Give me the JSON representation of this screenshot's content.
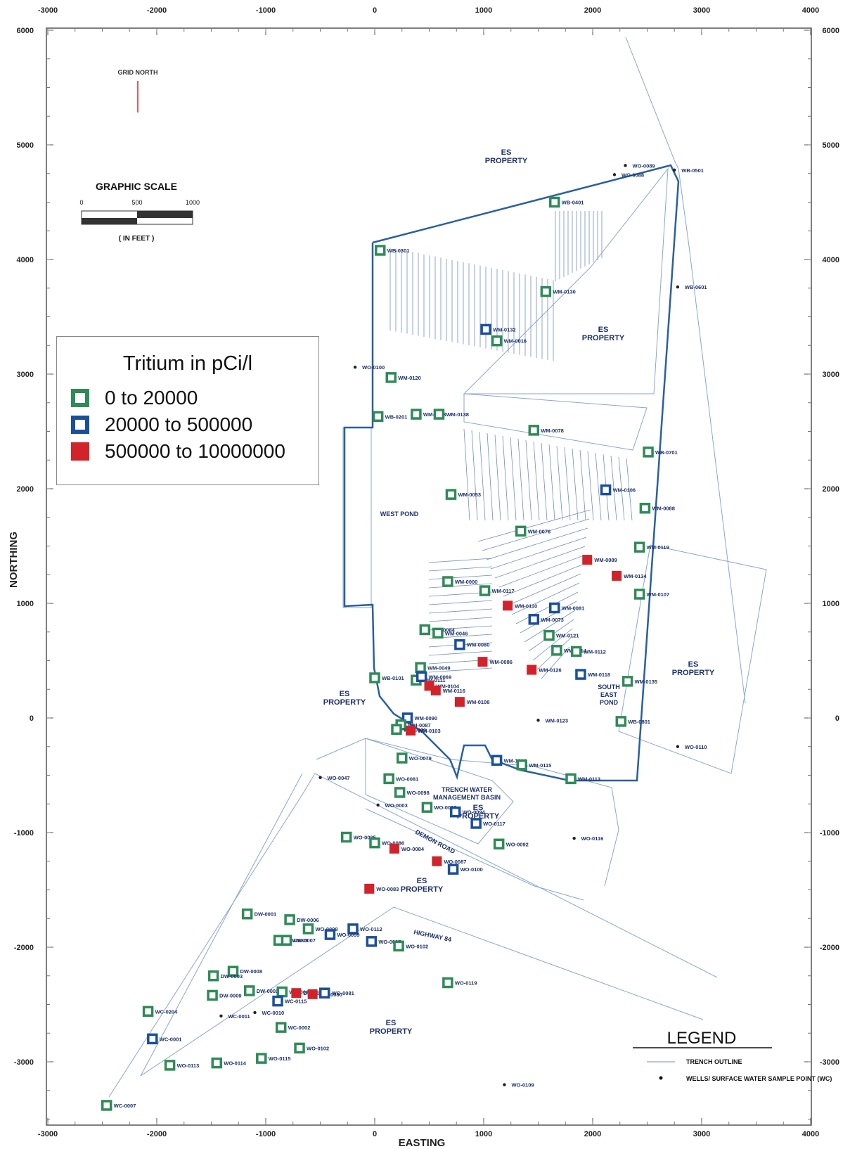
{
  "axes": {
    "x_title": "EASTING",
    "y_title": "NORTHING",
    "x_top_ticks": [
      "-3000",
      "-2000",
      "-1000",
      "0",
      "1000",
      "2000",
      "3000",
      "4000"
    ],
    "x_bottom_ticks": [
      "-3000",
      "-2000",
      "-1000",
      "0",
      "1000",
      "2000",
      "3000",
      "4000"
    ],
    "y_left_ticks": [
      "6000",
      "5000",
      "4000",
      "3000",
      "2000",
      "1000",
      "0",
      "-1000",
      "-2000",
      "-3000"
    ],
    "y_right_ticks": [
      "6000",
      "5000",
      "4000",
      "3000",
      "2000",
      "1000",
      "0",
      "-1000",
      "-2000",
      "-3000"
    ]
  },
  "north_arrow": {
    "label": "GRID NORTH"
  },
  "scale_bar": {
    "title": "GRAPHIC SCALE",
    "ticks": [
      "0",
      "500",
      "1000"
    ],
    "unit": "( IN FEET )"
  },
  "legend_tritium": {
    "title": "Tritium in pCi/l",
    "items": [
      {
        "label": "0  to  20000",
        "color": "#2e8b57",
        "style": "hollow"
      },
      {
        "label": "20000  to  500000",
        "color": "#1a4f9c",
        "style": "hollow"
      },
      {
        "label": "500000  to  10000000",
        "color": "#d2232a",
        "style": "filled"
      }
    ]
  },
  "legend_map": {
    "title": "LEGEND",
    "items": [
      {
        "label": "TRENCH OUTLINE"
      },
      {
        "label": "WELLS/ SURFACE WATER SAMPLE POINT (WC)"
      }
    ]
  },
  "area_labels": [
    "ES PROPERTY",
    "ES PROPERTY",
    "ES PROPERTY",
    "ES PROPERTY",
    "ES PROPERTY",
    "ES PROPERTY",
    "WEST POND",
    "SOUTH EAST POND",
    "TRENCH WATER MANAGEMENT BASIN",
    "DEMON ROAD",
    "HIGHWAY 84"
  ],
  "colors": {
    "low": "#2e8b57",
    "mid": "#1a4f9c",
    "high": "#d2232a",
    "boundary": "#2a5fa0",
    "trench": "#6f8fc0"
  },
  "samples": [
    {
      "id": "WB-0401",
      "e": 1650,
      "n": 4500,
      "level": "low"
    },
    {
      "id": "WO-0089",
      "e": 2300,
      "n": 4820,
      "level": "none"
    },
    {
      "id": "WO-0088",
      "e": 2200,
      "n": 4740,
      "level": "none"
    },
    {
      "id": "WB-0501",
      "e": 2750,
      "n": 4780,
      "level": "none"
    },
    {
      "id": "WB-0301",
      "e": 50,
      "n": 4080,
      "level": "low"
    },
    {
      "id": "WB-0601",
      "e": 2780,
      "n": 3760,
      "level": "none"
    },
    {
      "id": "WM-0130",
      "e": 1570,
      "n": 3720,
      "level": "low"
    },
    {
      "id": "WM-0132",
      "e": 1020,
      "n": 3390,
      "level": "mid"
    },
    {
      "id": "WM-0016",
      "e": 1120,
      "n": 3290,
      "level": "low"
    },
    {
      "id": "WO-0100",
      "e": -180,
      "n": 3060,
      "level": "none"
    },
    {
      "id": "WM-0120",
      "e": 150,
      "n": 2970,
      "level": "low"
    },
    {
      "id": "WB-0201",
      "e": 30,
      "n": 2630,
      "level": "low"
    },
    {
      "id": "WM-0133",
      "e": 380,
      "n": 2650,
      "level": "low"
    },
    {
      "id": "WM-0138",
      "e": 590,
      "n": 2650,
      "level": "low"
    },
    {
      "id": "WM-0078",
      "e": 1460,
      "n": 2510,
      "level": "low"
    },
    {
      "id": "WB-0701",
      "e": 2510,
      "n": 2320,
      "level": "low"
    },
    {
      "id": "WM-0053",
      "e": 700,
      "n": 1950,
      "level": "low"
    },
    {
      "id": "WM-0106",
      "e": 2120,
      "n": 1990,
      "level": "mid"
    },
    {
      "id": "WM-0088",
      "e": 2480,
      "n": 1830,
      "level": "low"
    },
    {
      "id": "WM-0076",
      "e": 1340,
      "n": 1630,
      "level": "low"
    },
    {
      "id": "WM-0119",
      "e": 2430,
      "n": 1490,
      "level": "low"
    },
    {
      "id": "WM-0089",
      "e": 1950,
      "n": 1380,
      "level": "high"
    },
    {
      "id": "WM-0134",
      "e": 2220,
      "n": 1240,
      "level": "high"
    },
    {
      "id": "WM-0000",
      "e": 670,
      "n": 1190,
      "level": "low"
    },
    {
      "id": "WM-0117",
      "e": 1010,
      "n": 1110,
      "level": "low"
    },
    {
      "id": "WM-0107",
      "e": 2430,
      "n": 1080,
      "level": "low"
    },
    {
      "id": "WM-0110",
      "e": 1220,
      "n": 980,
      "level": "high"
    },
    {
      "id": "WM-0081",
      "e": 1650,
      "n": 960,
      "level": "mid"
    },
    {
      "id": "WM-0073",
      "e": 1460,
      "n": 860,
      "level": "mid"
    },
    {
      "id": "WM-0084",
      "e": 460,
      "n": 770,
      "level": "low"
    },
    {
      "id": "WM-0046",
      "e": 580,
      "n": 740,
      "level": "low"
    },
    {
      "id": "WM-0121",
      "e": 1600,
      "n": 720,
      "level": "low"
    },
    {
      "id": "WM-0080",
      "e": 780,
      "n": 640,
      "level": "mid"
    },
    {
      "id": "WM-0114",
      "e": 1670,
      "n": 590,
      "level": "low"
    },
    {
      "id": "WM-0112",
      "e": 1850,
      "n": 580,
      "level": "low"
    },
    {
      "id": "WM-0086",
      "e": 990,
      "n": 490,
      "level": "high"
    },
    {
      "id": "WM-0049",
      "e": 420,
      "n": 440,
      "level": "low"
    },
    {
      "id": "WM-0126",
      "e": 1440,
      "n": 420,
      "level": "high"
    },
    {
      "id": "WM-0118",
      "e": 1890,
      "n": 380,
      "level": "mid"
    },
    {
      "id": "WM-0111",
      "e": 380,
      "n": 330,
      "level": "low"
    },
    {
      "id": "WM-0069",
      "e": 430,
      "n": 360,
      "level": "mid"
    },
    {
      "id": "WB-0101",
      "e": 0,
      "n": 350,
      "level": "low"
    },
    {
      "id": "WM-0135",
      "e": 2320,
      "n": 320,
      "level": "low"
    },
    {
      "id": "WM-0104",
      "e": 500,
      "n": 280,
      "level": "high"
    },
    {
      "id": "WM-0116",
      "e": 560,
      "n": 240,
      "level": "high"
    },
    {
      "id": "WM-0108",
      "e": 780,
      "n": 140,
      "level": "high"
    },
    {
      "id": "WM-0123",
      "e": 1500,
      "n": -20,
      "level": "none"
    },
    {
      "id": "WB-0801",
      "e": 2260,
      "n": -30,
      "level": "low"
    },
    {
      "id": "WM-0090",
      "e": 300,
      "n": 0,
      "level": "mid"
    },
    {
      "id": "WM-0087",
      "e": 240,
      "n": -60,
      "level": "low"
    },
    {
      "id": "WM-0101",
      "e": 200,
      "n": -100,
      "level": "low"
    },
    {
      "id": "WM-0103",
      "e": 330,
      "n": -110,
      "level": "high"
    },
    {
      "id": "WO-0110",
      "e": 2780,
      "n": -250,
      "level": "none"
    },
    {
      "id": "WO-0079",
      "e": 250,
      "n": -350,
      "level": "low"
    },
    {
      "id": "WM-1001",
      "e": 1120,
      "n": -370,
      "level": "mid"
    },
    {
      "id": "WM-0115",
      "e": 1350,
      "n": -410,
      "level": "low"
    },
    {
      "id": "WO-0047",
      "e": -500,
      "n": -520,
      "level": "none"
    },
    {
      "id": "WO-0081",
      "e": 130,
      "n": -530,
      "level": "low"
    },
    {
      "id": "WM-0113",
      "e": 1800,
      "n": -530,
      "level": "low"
    },
    {
      "id": "WO-0098",
      "e": 230,
      "n": -650,
      "level": "low"
    },
    {
      "id": "WO-0003",
      "e": 30,
      "n": -760,
      "level": "none"
    },
    {
      "id": "WO-0093",
      "e": 480,
      "n": -780,
      "level": "low"
    },
    {
      "id": "WO-0094",
      "e": 740,
      "n": -820,
      "level": "mid"
    },
    {
      "id": "WO-0117",
      "e": 930,
      "n": -920,
      "level": "mid"
    },
    {
      "id": "WO-0085",
      "e": -260,
      "n": -1040,
      "level": "low"
    },
    {
      "id": "WO-0086",
      "e": 0,
      "n": -1090,
      "level": "low"
    },
    {
      "id": "WO-0092",
      "e": 1140,
      "n": -1100,
      "level": "low"
    },
    {
      "id": "WO-0116",
      "e": 1830,
      "n": -1050,
      "level": "none"
    },
    {
      "id": "WO-0084",
      "e": 180,
      "n": -1140,
      "level": "high"
    },
    {
      "id": "WO-0087",
      "e": 570,
      "n": -1250,
      "level": "high"
    },
    {
      "id": "WO-0100",
      "e": 720,
      "n": -1320,
      "level": "mid"
    },
    {
      "id": "WO-0083",
      "e": -50,
      "n": -1490,
      "level": "high"
    },
    {
      "id": "DW-0001",
      "e": -1170,
      "n": -1710,
      "level": "low"
    },
    {
      "id": "DW-0006",
      "e": -780,
      "n": -1760,
      "level": "low"
    },
    {
      "id": "WO-0098",
      "e": -610,
      "n": -1840,
      "level": "low"
    },
    {
      "id": "WO-0112",
      "e": -200,
      "n": -1840,
      "level": "mid"
    },
    {
      "id": "WO-0099",
      "e": -410,
      "n": -1890,
      "level": "mid"
    },
    {
      "id": "DW-0005",
      "e": -880,
      "n": -1940,
      "level": "low"
    },
    {
      "id": "DW-0007",
      "e": -810,
      "n": -1940,
      "level": "low"
    },
    {
      "id": "WO-0097",
      "e": -30,
      "n": -1950,
      "level": "mid"
    },
    {
      "id": "WO-0102",
      "e": 220,
      "n": -1990,
      "level": "low"
    },
    {
      "id": "DW-0008",
      "e": -1300,
      "n": -2210,
      "level": "low"
    },
    {
      "id": "DW-0003",
      "e": -1480,
      "n": -2250,
      "level": "low"
    },
    {
      "id": "WO-0119",
      "e": 670,
      "n": -2310,
      "level": "low"
    },
    {
      "id": "DW-0002",
      "e": -1150,
      "n": -2380,
      "level": "low"
    },
    {
      "id": "WO-0088",
      "e": -850,
      "n": -2390,
      "level": "low"
    },
    {
      "id": "DW-0004",
      "e": -720,
      "n": -2400,
      "level": "high"
    },
    {
      "id": "WO-0080",
      "e": -570,
      "n": -2410,
      "level": "high"
    },
    {
      "id": "WO-0081",
      "e": -460,
      "n": -2400,
      "level": "mid"
    },
    {
      "id": "DW-0009",
      "e": -1490,
      "n": -2420,
      "level": "low"
    },
    {
      "id": "WC-0115",
      "e": -890,
      "n": -2470,
      "level": "mid"
    },
    {
      "id": "WC-0204",
      "e": -2080,
      "n": -2560,
      "level": "low"
    },
    {
      "id": "WC-0011",
      "e": -1410,
      "n": -2600,
      "level": "none"
    },
    {
      "id": "WC-0010",
      "e": -1100,
      "n": -2570,
      "level": "none"
    },
    {
      "id": "WC-0002",
      "e": -860,
      "n": -2700,
      "level": "low"
    },
    {
      "id": "WC-0001",
      "e": -2040,
      "n": -2800,
      "level": "mid"
    },
    {
      "id": "WO-0102",
      "e": -690,
      "n": -2880,
      "level": "low"
    },
    {
      "id": "WO-0115",
      "e": -1040,
      "n": -2970,
      "level": "low"
    },
    {
      "id": "WO-0114",
      "e": -1450,
      "n": -3010,
      "level": "low"
    },
    {
      "id": "WO-0113",
      "e": -1880,
      "n": -3030,
      "level": "low"
    },
    {
      "id": "WO-0109",
      "e": 1190,
      "n": -3200,
      "level": "none"
    },
    {
      "id": "WC-0007",
      "e": -2460,
      "n": -3380,
      "level": "low"
    }
  ]
}
